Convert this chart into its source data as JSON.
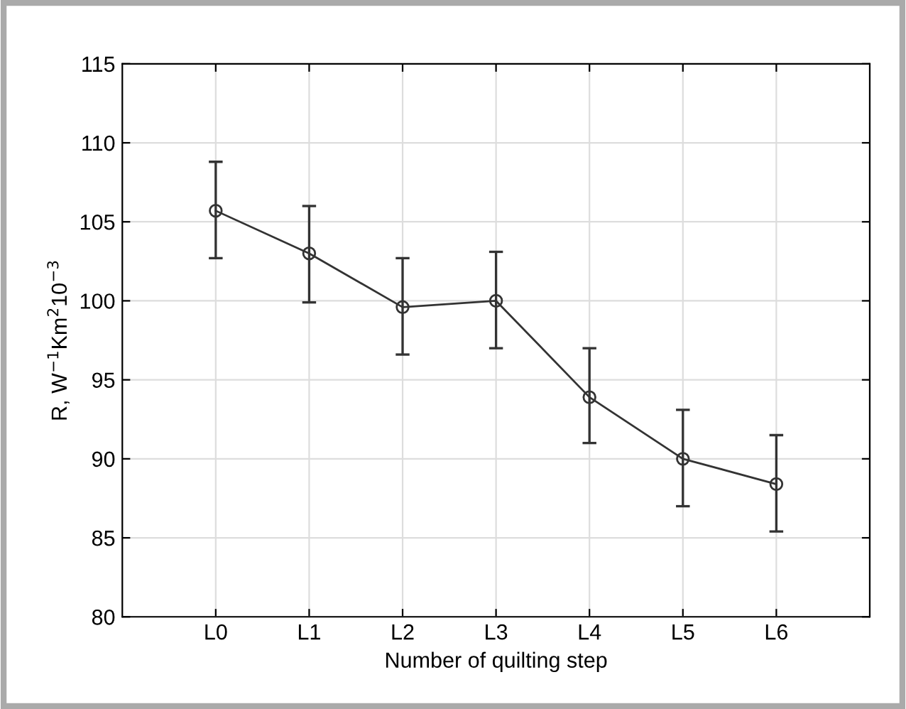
{
  "chart_data": {
    "type": "line",
    "xlabel": "Number of quilting step",
    "ylabel": "R, W$^{−1}$Km$^{2}$10$^{−3}$",
    "categories": [
      "L0",
      "L1",
      "L2",
      "L3",
      "L4",
      "L5",
      "L6"
    ],
    "series": [
      {
        "color": "#333333",
        "values": [
          105.7,
          103.0,
          99.6,
          100.0,
          93.9,
          90.0,
          88.4
        ],
        "errors": [
          [
            102.7,
            108.8
          ],
          [
            99.9,
            106.0
          ],
          [
            96.6,
            102.7
          ],
          [
            97.0,
            103.1
          ],
          [
            91.0,
            97.0
          ],
          [
            87.0,
            93.1
          ],
          [
            85.4,
            91.5
          ]
        ]
      }
    ],
    "ylim": [
      80,
      115
    ],
    "yticks": [
      80,
      85,
      90,
      95,
      100,
      105,
      110,
      115
    ],
    "grid": true,
    "marker": "circle",
    "line_style": "solid",
    "legend": false
  }
}
